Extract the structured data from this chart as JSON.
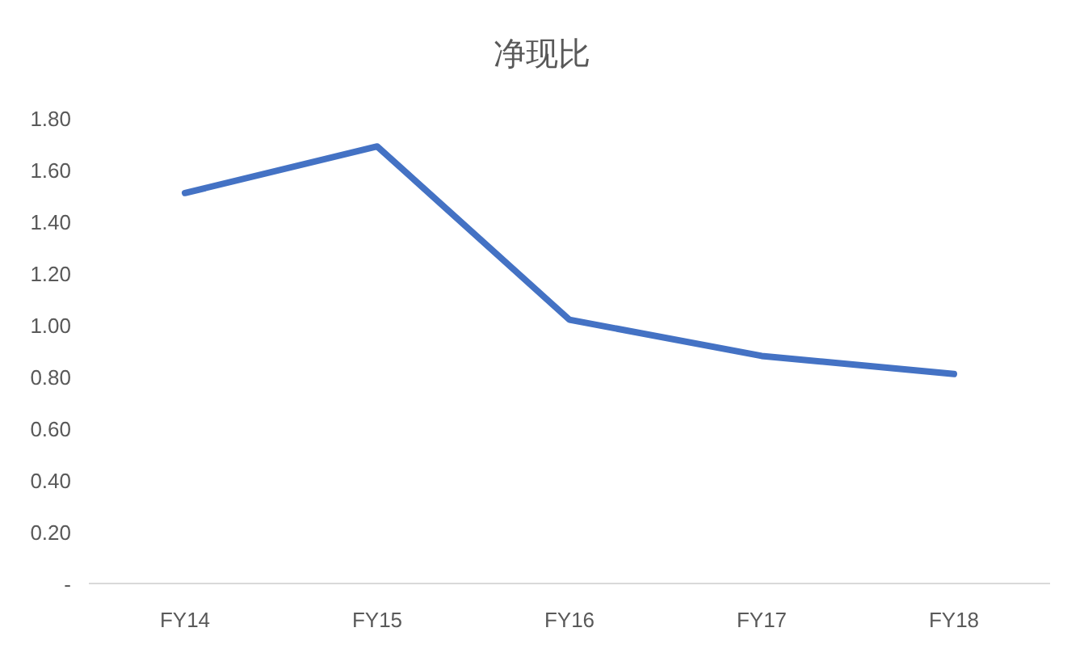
{
  "chart_data": {
    "type": "line",
    "title": "净现比",
    "categories": [
      "FY14",
      "FY15",
      "FY16",
      "FY17",
      "FY18"
    ],
    "values": [
      1.51,
      1.69,
      1.02,
      0.88,
      0.81
    ],
    "color": "#4472c4",
    "ylim": [
      0,
      1.8
    ],
    "yticks": [
      {
        "value": 0,
        "label": "-"
      },
      {
        "value": 0.2,
        "label": "0.20"
      },
      {
        "value": 0.4,
        "label": "0.40"
      },
      {
        "value": 0.6,
        "label": "0.60"
      },
      {
        "value": 0.8,
        "label": "0.80"
      },
      {
        "value": 1.0,
        "label": "1.00"
      },
      {
        "value": 1.2,
        "label": "1.20"
      },
      {
        "value": 1.4,
        "label": "1.40"
      },
      {
        "value": 1.6,
        "label": "1.60"
      },
      {
        "value": 1.8,
        "label": "1.80"
      }
    ]
  }
}
